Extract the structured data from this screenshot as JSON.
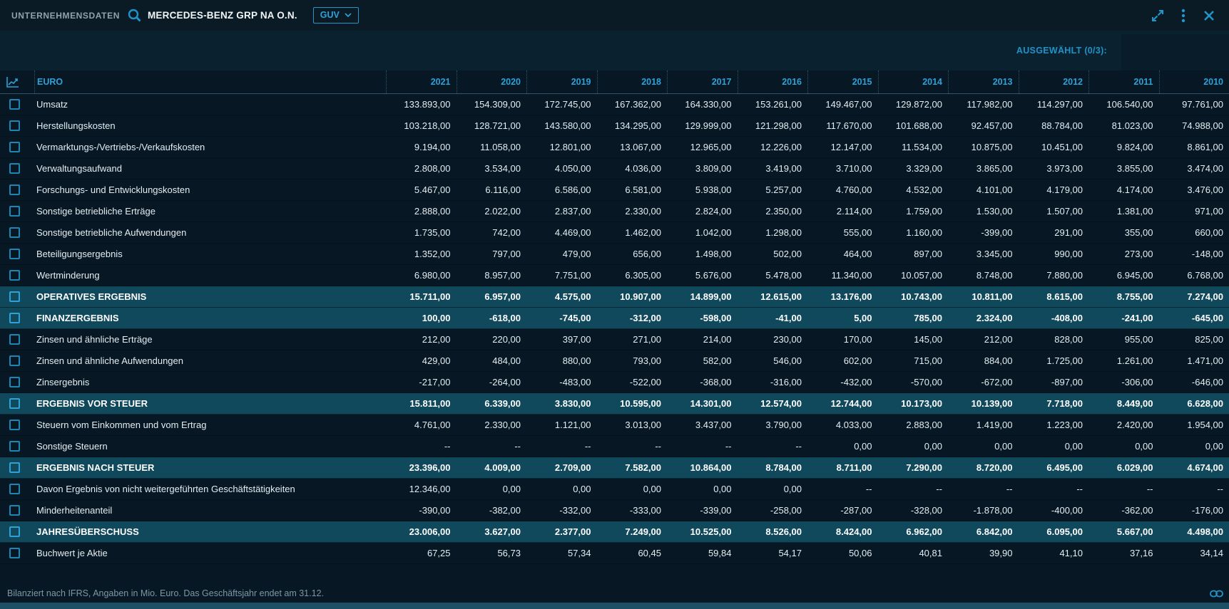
{
  "topbar": {
    "module_title": "UNTERNEHMENSDATEN",
    "company": "MERCEDES-BENZ GRP NA O.N.",
    "view_selected": "GUV"
  },
  "toolbar": {
    "selected_label": "AUSGEWÄHLT (0/3):"
  },
  "table": {
    "unit_label": "EURO",
    "years": [
      "2021",
      "2020",
      "2019",
      "2018",
      "2017",
      "2016",
      "2015",
      "2014",
      "2013",
      "2012",
      "2011",
      "2010"
    ],
    "rows": [
      {
        "label": "Umsatz",
        "emphasis": false,
        "values": [
          "133.893,00",
          "154.309,00",
          "172.745,00",
          "167.362,00",
          "164.330,00",
          "153.261,00",
          "149.467,00",
          "129.872,00",
          "117.982,00",
          "114.297,00",
          "106.540,00",
          "97.761,00"
        ]
      },
      {
        "label": "Herstellungskosten",
        "emphasis": false,
        "values": [
          "103.218,00",
          "128.721,00",
          "143.580,00",
          "134.295,00",
          "129.999,00",
          "121.298,00",
          "117.670,00",
          "101.688,00",
          "92.457,00",
          "88.784,00",
          "81.023,00",
          "74.988,00"
        ]
      },
      {
        "label": "Vermarktungs-/Vertriebs-/Verkaufskosten",
        "emphasis": false,
        "values": [
          "9.194,00",
          "11.058,00",
          "12.801,00",
          "13.067,00",
          "12.965,00",
          "12.226,00",
          "12.147,00",
          "11.534,00",
          "10.875,00",
          "10.451,00",
          "9.824,00",
          "8.861,00"
        ]
      },
      {
        "label": "Verwaltungsaufwand",
        "emphasis": false,
        "values": [
          "2.808,00",
          "3.534,00",
          "4.050,00",
          "4.036,00",
          "3.809,00",
          "3.419,00",
          "3.710,00",
          "3.329,00",
          "3.865,00",
          "3.973,00",
          "3.855,00",
          "3.474,00"
        ]
      },
      {
        "label": "Forschungs- und Entwicklungskosten",
        "emphasis": false,
        "values": [
          "5.467,00",
          "6.116,00",
          "6.586,00",
          "6.581,00",
          "5.938,00",
          "5.257,00",
          "4.760,00",
          "4.532,00",
          "4.101,00",
          "4.179,00",
          "4.174,00",
          "3.476,00"
        ]
      },
      {
        "label": "Sonstige betriebliche Erträge",
        "emphasis": false,
        "values": [
          "2.888,00",
          "2.022,00",
          "2.837,00",
          "2.330,00",
          "2.824,00",
          "2.350,00",
          "2.114,00",
          "1.759,00",
          "1.530,00",
          "1.507,00",
          "1.381,00",
          "971,00"
        ]
      },
      {
        "label": "Sonstige betriebliche Aufwendungen",
        "emphasis": false,
        "values": [
          "1.735,00",
          "742,00",
          "4.469,00",
          "1.462,00",
          "1.042,00",
          "1.298,00",
          "555,00",
          "1.160,00",
          "-399,00",
          "291,00",
          "355,00",
          "660,00"
        ]
      },
      {
        "label": "Beteiligungsergebnis",
        "emphasis": false,
        "values": [
          "1.352,00",
          "797,00",
          "479,00",
          "656,00",
          "1.498,00",
          "502,00",
          "464,00",
          "897,00",
          "3.345,00",
          "990,00",
          "273,00",
          "-148,00"
        ]
      },
      {
        "label": "Wertminderung",
        "emphasis": false,
        "values": [
          "6.980,00",
          "8.957,00",
          "7.751,00",
          "6.305,00",
          "5.676,00",
          "5.478,00",
          "11.340,00",
          "10.057,00",
          "8.748,00",
          "7.880,00",
          "6.945,00",
          "6.768,00"
        ]
      },
      {
        "label": "OPERATIVES ERGEBNIS",
        "emphasis": true,
        "values": [
          "15.711,00",
          "6.957,00",
          "4.575,00",
          "10.907,00",
          "14.899,00",
          "12.615,00",
          "13.176,00",
          "10.743,00",
          "10.811,00",
          "8.615,00",
          "8.755,00",
          "7.274,00"
        ]
      },
      {
        "label": "FINANZERGEBNIS",
        "emphasis": true,
        "values": [
          "100,00",
          "-618,00",
          "-745,00",
          "-312,00",
          "-598,00",
          "-41,00",
          "5,00",
          "785,00",
          "2.324,00",
          "-408,00",
          "-241,00",
          "-645,00"
        ]
      },
      {
        "label": "Zinsen und ähnliche Erträge",
        "emphasis": false,
        "values": [
          "212,00",
          "220,00",
          "397,00",
          "271,00",
          "214,00",
          "230,00",
          "170,00",
          "145,00",
          "212,00",
          "828,00",
          "955,00",
          "825,00"
        ]
      },
      {
        "label": "Zinsen und ähnliche Aufwendungen",
        "emphasis": false,
        "values": [
          "429,00",
          "484,00",
          "880,00",
          "793,00",
          "582,00",
          "546,00",
          "602,00",
          "715,00",
          "884,00",
          "1.725,00",
          "1.261,00",
          "1.471,00"
        ]
      },
      {
        "label": "Zinsergebnis",
        "emphasis": false,
        "values": [
          "-217,00",
          "-264,00",
          "-483,00",
          "-522,00",
          "-368,00",
          "-316,00",
          "-432,00",
          "-570,00",
          "-672,00",
          "-897,00",
          "-306,00",
          "-646,00"
        ]
      },
      {
        "label": "ERGEBNIS VOR STEUER",
        "emphasis": true,
        "values": [
          "15.811,00",
          "6.339,00",
          "3.830,00",
          "10.595,00",
          "14.301,00",
          "12.574,00",
          "12.744,00",
          "10.173,00",
          "10.139,00",
          "7.718,00",
          "8.449,00",
          "6.628,00"
        ]
      },
      {
        "label": "Steuern vom Einkommen und vom Ertrag",
        "emphasis": false,
        "values": [
          "4.761,00",
          "2.330,00",
          "1.121,00",
          "3.013,00",
          "3.437,00",
          "3.790,00",
          "4.033,00",
          "2.883,00",
          "1.419,00",
          "1.223,00",
          "2.420,00",
          "1.954,00"
        ]
      },
      {
        "label": "Sonstige Steuern",
        "emphasis": false,
        "values": [
          "--",
          "--",
          "--",
          "--",
          "--",
          "--",
          "0,00",
          "0,00",
          "0,00",
          "0,00",
          "0,00",
          "0,00"
        ]
      },
      {
        "label": "ERGEBNIS NACH STEUER",
        "emphasis": true,
        "values": [
          "23.396,00",
          "4.009,00",
          "2.709,00",
          "7.582,00",
          "10.864,00",
          "8.784,00",
          "8.711,00",
          "7.290,00",
          "8.720,00",
          "6.495,00",
          "6.029,00",
          "4.674,00"
        ]
      },
      {
        "label": "Davon Ergebnis von nicht weitergeführten Geschäftstätigkeiten",
        "emphasis": false,
        "values": [
          "12.346,00",
          "0,00",
          "0,00",
          "0,00",
          "0,00",
          "0,00",
          "--",
          "--",
          "--",
          "--",
          "--",
          "--"
        ]
      },
      {
        "label": "Minderheitenanteil",
        "emphasis": false,
        "values": [
          "-390,00",
          "-382,00",
          "-332,00",
          "-333,00",
          "-339,00",
          "-258,00",
          "-287,00",
          "-328,00",
          "-1.878,00",
          "-400,00",
          "-362,00",
          "-176,00"
        ]
      },
      {
        "label": "JAHRESÜBERSCHUSS",
        "emphasis": true,
        "values": [
          "23.006,00",
          "3.627,00",
          "2.377,00",
          "7.249,00",
          "10.525,00",
          "8.526,00",
          "8.424,00",
          "6.962,00",
          "6.842,00",
          "6.095,00",
          "5.667,00",
          "4.498,00"
        ]
      },
      {
        "label": "Buchwert je Aktie",
        "emphasis": false,
        "values": [
          "67,25",
          "56,73",
          "57,34",
          "60,45",
          "59,84",
          "54,17",
          "50,06",
          "40,81",
          "39,90",
          "41,10",
          "37,16",
          "34,14"
        ]
      }
    ]
  },
  "footer": {
    "note": "Bilanziert nach IFRS, Angaben in Mio. Euro. Das Geschäftsjahr endet am 31.12."
  },
  "icons": {
    "search": "magnifier",
    "dropdown_chevron": "chevron-down",
    "expand": "expand-diagonal-arrows",
    "menu": "kebab-vertical-dots",
    "close": "x-cross",
    "chart": "line-chart",
    "link": "chain-link"
  },
  "colors": {
    "accent": "#2da2d8",
    "topbar_bg": "#0a1b26",
    "toolbar_bg": "#0a2230",
    "table_bg": "#071723",
    "row_highlight": "#10485c",
    "checkbox_border": "#1d86b2",
    "header_text": "#2da2d8",
    "muted_text": "#7d98a7",
    "bottom_bar": "#1d5064"
  }
}
